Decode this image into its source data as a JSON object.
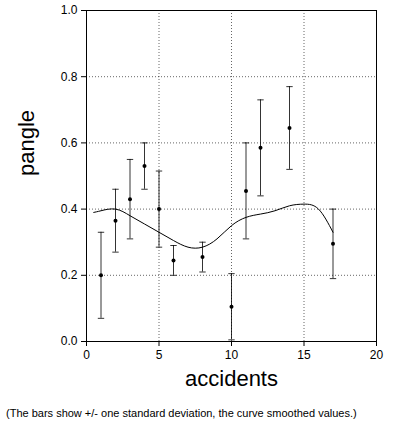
{
  "chart_data": {
    "type": "scatter",
    "x_label": "accidents",
    "y_label": "pangle",
    "caption": "(The bars show +/- one standard deviation, the curve smoothed values.)",
    "xlim": [
      0,
      20
    ],
    "xticks": [
      0,
      5,
      10,
      15,
      20
    ],
    "ylim": [
      0,
      1
    ],
    "yticks": [
      {
        "value": 0,
        "label": "0.0"
      },
      {
        "value": 0.2,
        "label": "0.2"
      },
      {
        "value": 0.4,
        "label": "0.4"
      },
      {
        "value": 0.6,
        "label": "0.6"
      },
      {
        "value": 0.8,
        "label": "0.8"
      },
      {
        "value": 1,
        "label": "1.0"
      }
    ],
    "grid": true,
    "series": [
      {
        "type": "scatter",
        "color": "#000000",
        "marker": "circle",
        "x": [
          1,
          2,
          3,
          4,
          5,
          6,
          8,
          10,
          11,
          12,
          14,
          17
        ],
        "values": [
          0.2,
          0.365,
          0.43,
          0.53,
          0.4,
          0.245,
          0.255,
          0.105,
          0.455,
          0.585,
          0.645,
          0.295
        ],
        "std_dev": [
          0.13,
          0.095,
          0.12,
          0.07,
          0.115,
          0.045,
          0.045,
          0.1,
          0.145,
          0.145,
          0.125,
          0.105
        ]
      },
      {
        "type": "line",
        "color": "#000000",
        "line_style": "solid",
        "x": [
          0.5,
          1,
          2,
          3,
          4,
          5,
          6,
          7,
          8,
          9,
          10,
          11,
          12,
          13,
          14,
          15,
          16,
          17
        ],
        "values": [
          0.39,
          0.395,
          0.4,
          0.38,
          0.355,
          0.33,
          0.305,
          0.285,
          0.285,
          0.31,
          0.35,
          0.375,
          0.385,
          0.395,
          0.41,
          0.415,
          0.4,
          0.33
        ]
      }
    ]
  }
}
